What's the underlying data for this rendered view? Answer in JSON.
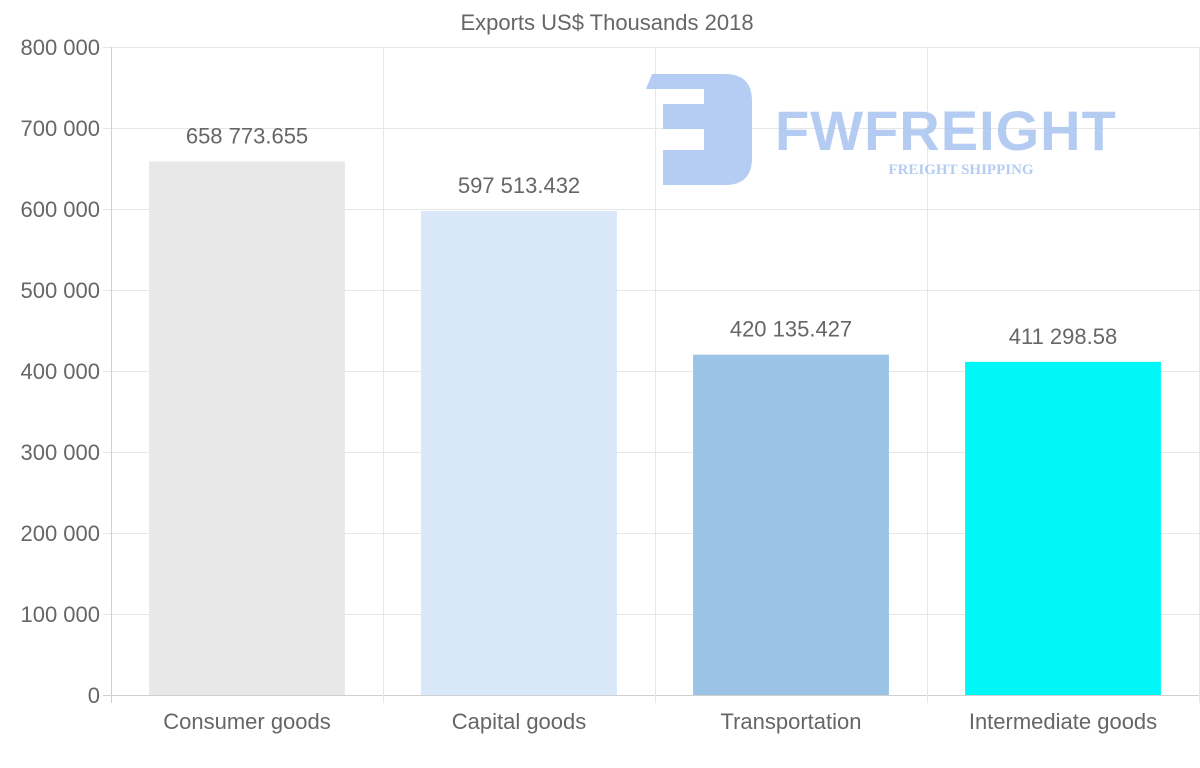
{
  "chart_data": {
    "type": "bar",
    "title": "Exports US$ Thousands 2018",
    "xlabel": "",
    "ylabel": "",
    "categories": [
      "Consumer goods",
      "Capital goods",
      "Transportation",
      "Intermediate goods"
    ],
    "values": [
      658773.655,
      597513.432,
      420135.427,
      411298.58
    ],
    "value_labels": [
      "658 773.655",
      "597 513.432",
      "420 135.427",
      "411 298.58"
    ],
    "colors": [
      "#e8e8e8",
      "#d8e8f8",
      "#9bc3e6",
      "#00f7f7"
    ],
    "ylim": [
      0,
      800000
    ],
    "yticks": [
      0,
      100000,
      200000,
      300000,
      400000,
      500000,
      600000,
      700000,
      800000
    ],
    "ytick_labels": [
      "0",
      "100 000",
      "200 000",
      "300 000",
      "400 000",
      "500 000",
      "600 000",
      "700 000",
      "800 000"
    ],
    "grid": true,
    "legend": "none"
  },
  "watermark": {
    "name": "FWFREIGHT",
    "tagline": "FREIGHT SHIPPING",
    "color": "#a8c4f0"
  }
}
